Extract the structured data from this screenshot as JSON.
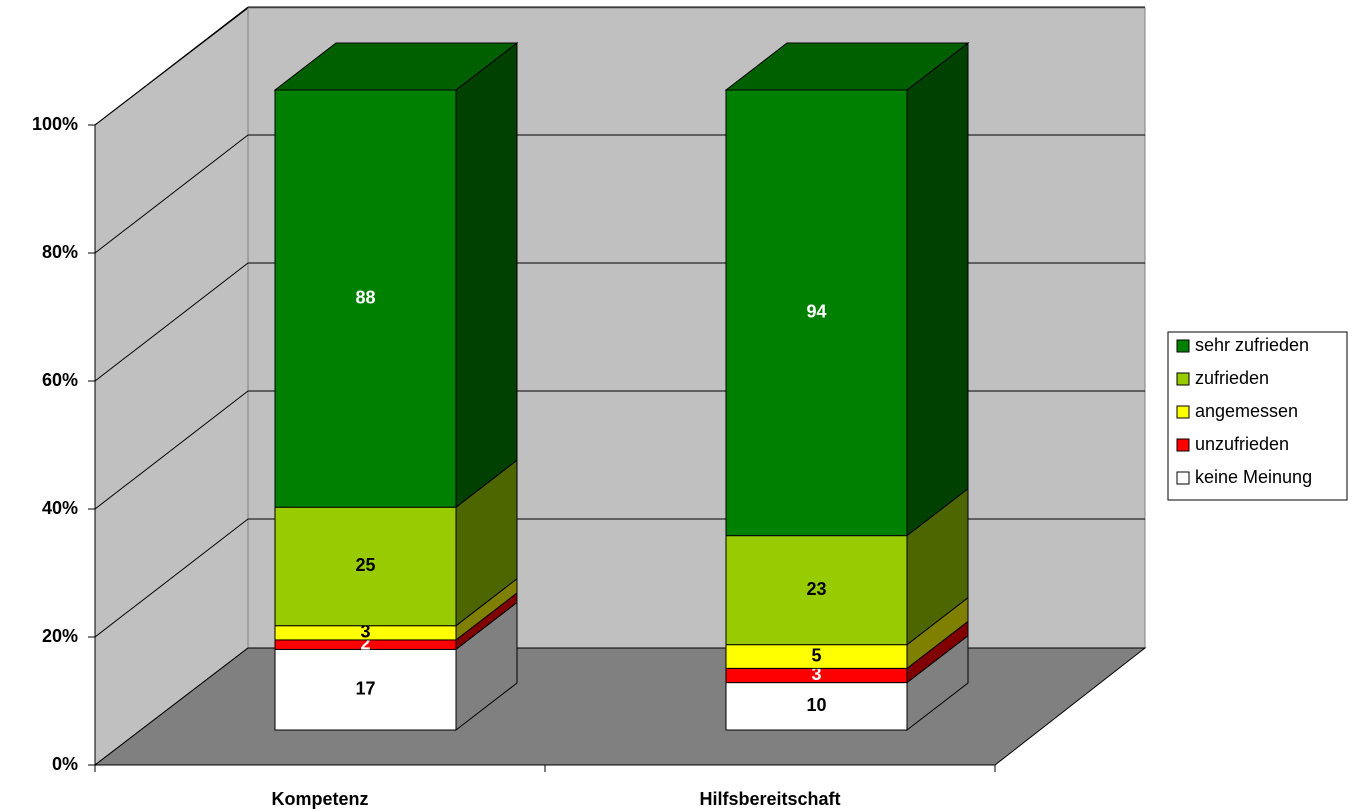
{
  "chart_data": {
    "type": "bar",
    "stacking": "percent",
    "categories": [
      "Kompetenz",
      "Hilfsbereitschaft"
    ],
    "series": [
      {
        "name": "keine Meinung",
        "color": "#ffffff",
        "values": [
          17,
          10
        ]
      },
      {
        "name": "unzufrieden",
        "color": "#ff0000",
        "values": [
          2,
          3
        ]
      },
      {
        "name": "angemessen",
        "color": "#ffff00",
        "values": [
          3,
          5
        ]
      },
      {
        "name": "zufrieden",
        "color": "#99cc00",
        "values": [
          25,
          23
        ]
      },
      {
        "name": "sehr zufrieden",
        "color": "#008000",
        "values": [
          88,
          94
        ]
      }
    ],
    "ylim": [
      0,
      100
    ],
    "yticks": [
      {
        "value": 0,
        "label": "0%"
      },
      {
        "value": 20,
        "label": "20%"
      },
      {
        "value": 40,
        "label": "40%"
      },
      {
        "value": 60,
        "label": "60%"
      },
      {
        "value": 80,
        "label": "80%"
      },
      {
        "value": 100,
        "label": "100%"
      }
    ],
    "grid": true,
    "legend": "right"
  }
}
